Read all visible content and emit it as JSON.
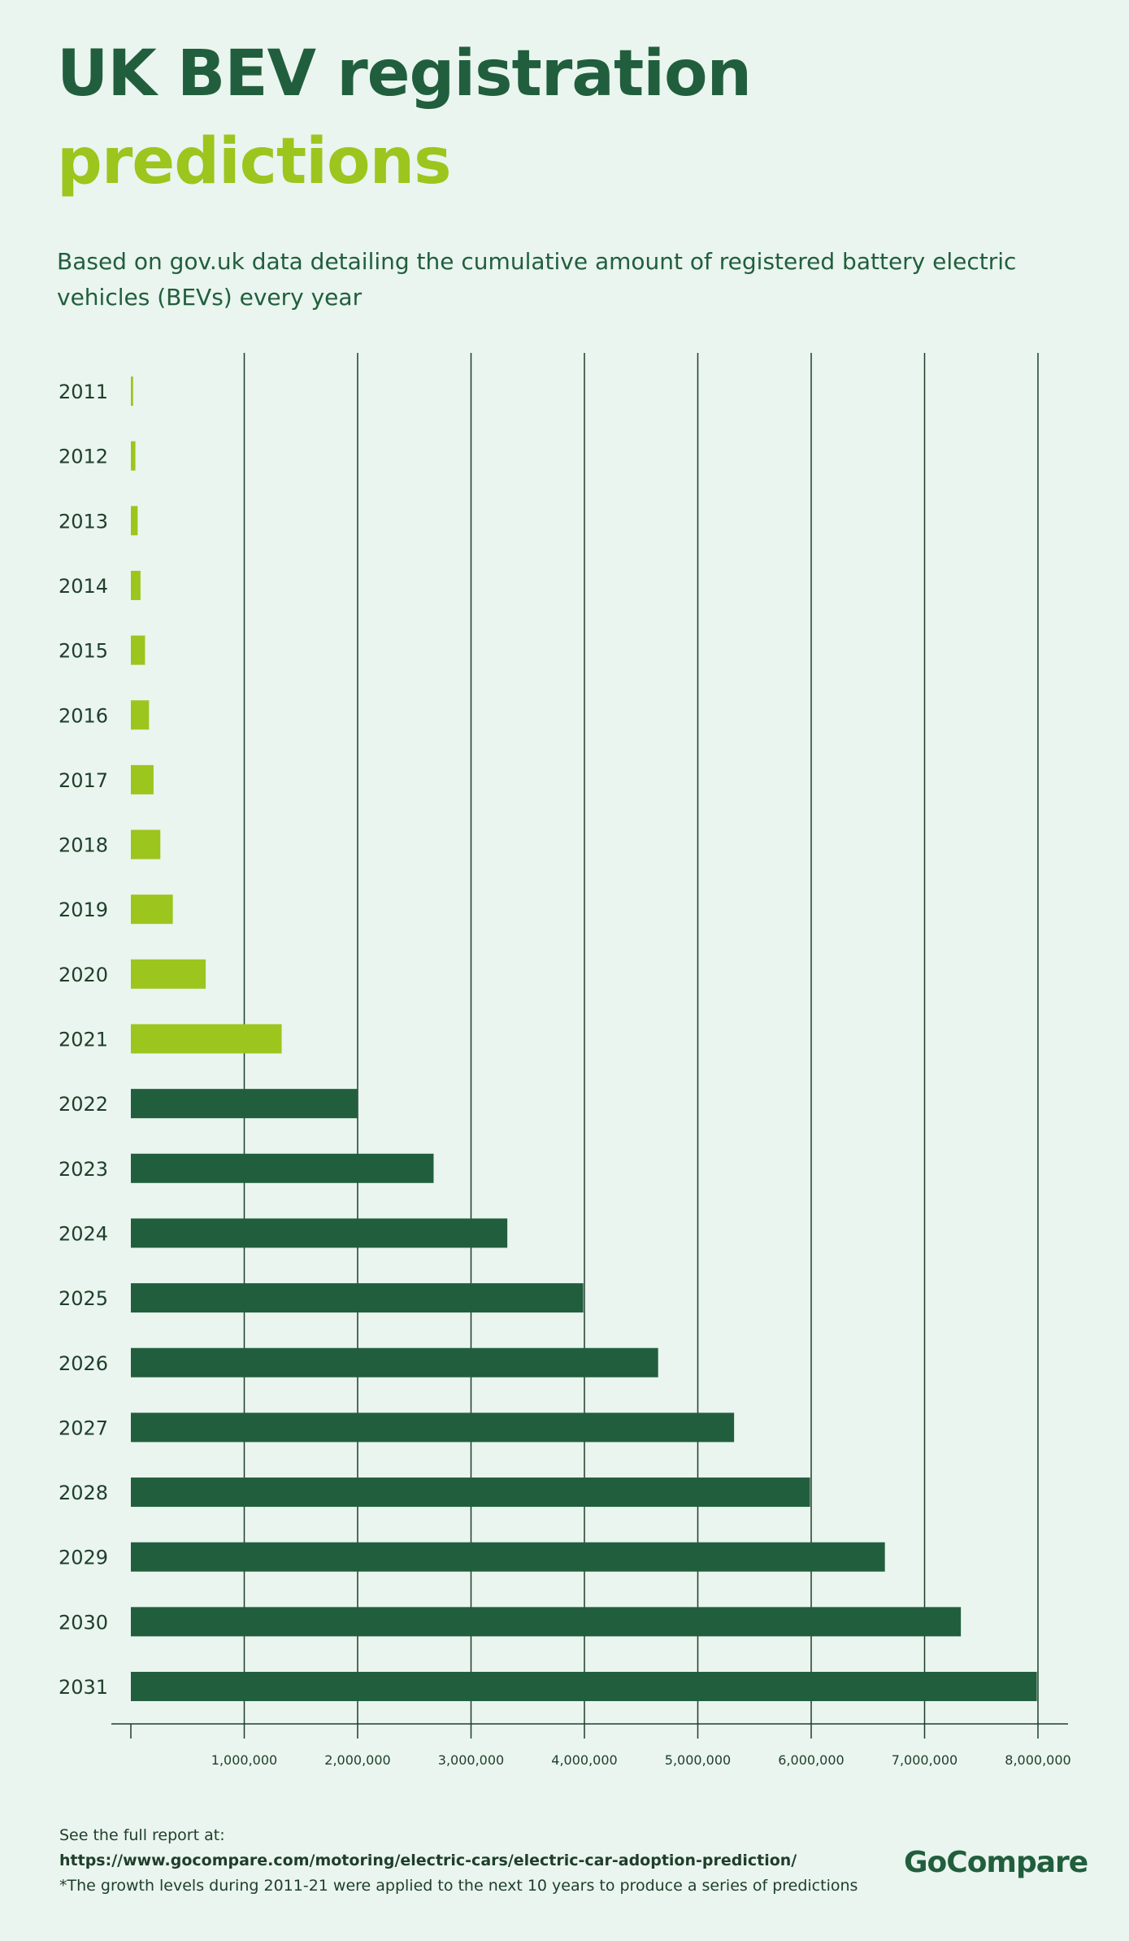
{
  "title": {
    "line1": "UK BEV registration",
    "line2": "predictions"
  },
  "subtitle": "Based on gov.uk data detailing the cumulative amount of registered battery electric vehicles (BEVs) every year",
  "colors": {
    "background": "#e9f5ee",
    "historic": "#9cc51e",
    "predicted": "#215e3d",
    "text": "#215e3d",
    "grid": "#1f3e2b"
  },
  "chart_data": {
    "type": "bar",
    "orientation": "horizontal",
    "categories": [
      "2011",
      "2012",
      "2013",
      "2014",
      "2015",
      "2016",
      "2017",
      "2018",
      "2019",
      "2020",
      "2021",
      "2022",
      "2023",
      "2024",
      "2025",
      "2026",
      "2027",
      "2028",
      "2029",
      "2030",
      "2031"
    ],
    "values": [
      20000,
      40000,
      60000,
      85000,
      125000,
      160000,
      200000,
      260000,
      370000,
      660000,
      1330000,
      2000000,
      2670000,
      3320000,
      3990000,
      4650000,
      5320000,
      5990000,
      6650000,
      7320000,
      7990000
    ],
    "series_type": [
      "historic",
      "historic",
      "historic",
      "historic",
      "historic",
      "historic",
      "historic",
      "historic",
      "historic",
      "historic",
      "historic",
      "predicted",
      "predicted",
      "predicted",
      "predicted",
      "predicted",
      "predicted",
      "predicted",
      "predicted",
      "predicted",
      "predicted"
    ],
    "xlim": [
      0,
      8000000
    ],
    "xticks": [
      1000000,
      2000000,
      3000000,
      4000000,
      5000000,
      6000000,
      7000000,
      8000000
    ],
    "xtick_labels": [
      "1,000,000",
      "2,000,000",
      "3,000,000",
      "4,000,000",
      "5,000,000",
      "6,000,000",
      "7,000,000",
      "8,000,000"
    ],
    "grid": true,
    "legend": "none"
  },
  "footer": {
    "line1": "See the full report at:",
    "url": "https://www.gocompare.com/motoring/electric-cars/electric-car-adoption-prediction/",
    "note": "*The growth levels during 2011-21 were applied to the next 10 years to produce a series of predictions"
  },
  "logo": "GoCompare"
}
